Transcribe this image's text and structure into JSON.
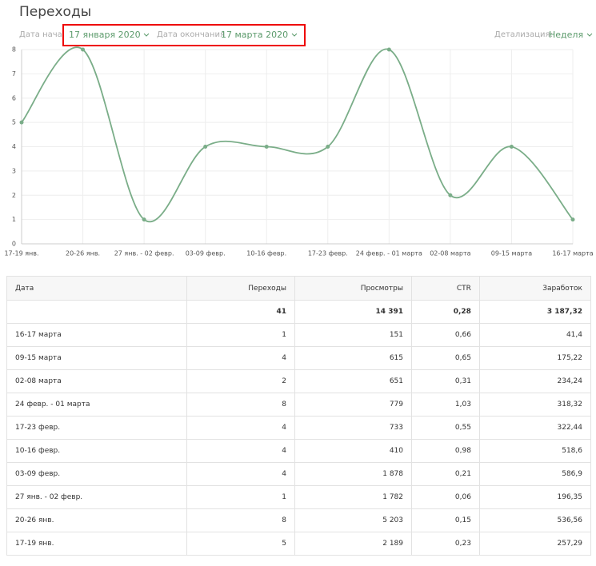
{
  "header": {
    "title": "Переходы",
    "start_label": "Дата начала",
    "start_value": "17 января 2020",
    "end_label": "Дата окончания",
    "end_value": "17 марта 2020",
    "detail_label": "Детализация:",
    "detail_value": "Неделя"
  },
  "chart_data": {
    "type": "line",
    "categories": [
      "17-19 янв.",
      "20-26 янв.",
      "27 янв. - 02 февр.",
      "03-09 февр.",
      "10-16 февр.",
      "17-23 февр.",
      "24 февр. - 01 марта",
      "02-08 марта",
      "09-15 марта",
      "16-17 марта"
    ],
    "values": [
      5,
      8,
      1,
      4,
      4,
      4,
      8,
      2,
      4,
      1
    ],
    "color": "#7aad88",
    "ylim": [
      0,
      8
    ],
    "yticks": [
      0,
      1,
      2,
      3,
      4,
      5,
      6,
      7,
      8
    ],
    "grid": true
  },
  "table": {
    "columns": [
      "Дата",
      "Переходы",
      "Просмотры",
      "CTR",
      "Заработок"
    ],
    "totals": [
      "41",
      "14 391",
      "0,28",
      "3 187,32"
    ],
    "rows": [
      [
        "16-17 марта",
        "1",
        "151",
        "0,66",
        "41,4"
      ],
      [
        "09-15 марта",
        "4",
        "615",
        "0,65",
        "175,22"
      ],
      [
        "02-08 марта",
        "2",
        "651",
        "0,31",
        "234,24"
      ],
      [
        "24 февр. - 01 марта",
        "8",
        "779",
        "1,03",
        "318,32"
      ],
      [
        "17-23 февр.",
        "4",
        "733",
        "0,55",
        "322,44"
      ],
      [
        "10-16 февр.",
        "4",
        "410",
        "0,98",
        "518,6"
      ],
      [
        "03-09 февр.",
        "4",
        "1 878",
        "0,21",
        "586,9"
      ],
      [
        "27 янв. - 02 февр.",
        "1",
        "1 782",
        "0,06",
        "196,35"
      ],
      [
        "20-26 янв.",
        "8",
        "5 203",
        "0,15",
        "536,56"
      ],
      [
        "17-19 янв.",
        "5",
        "2 189",
        "0,23",
        "257,29"
      ]
    ]
  }
}
